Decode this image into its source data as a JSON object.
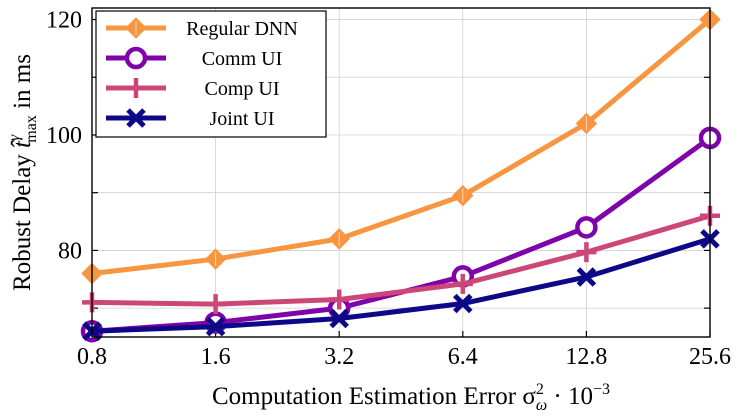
{
  "chart_data": {
    "type": "line",
    "title": "",
    "xlabel": "Computation Estimation Error σ²_ω · 10⁻³",
    "xlabel_parts": {
      "main": "Computation Estimation Error σ",
      "sup": "2",
      "sub": "ω",
      "tail": " · 10",
      "exp": "−3"
    },
    "ylabel": "Robust Delay t̂^γ_max in ms",
    "ylabel_parts": {
      "main": "Robust Delay ",
      "t": "t̂",
      "sup": "γ",
      "sub": "max",
      "tail": " in ms"
    },
    "x_scale": "log2",
    "x": [
      0.8,
      1.6,
      3.2,
      6.4,
      12.8,
      25.6
    ],
    "xticks": [
      "0.8",
      "1.6",
      "3.2",
      "6.4",
      "12.8",
      "25.6"
    ],
    "ylim": [
      65,
      122
    ],
    "yticks": [
      80,
      100,
      120
    ],
    "grid": true,
    "legend_position": "top-left",
    "series": [
      {
        "name": "Regular DNN",
        "color": "#f89540",
        "marker": "diamond",
        "values": [
          76.0,
          78.5,
          82.0,
          89.5,
          102.0,
          120.0
        ]
      },
      {
        "name": "Comm UI",
        "color": "#7e03a8",
        "marker": "circle",
        "values": [
          66.0,
          67.5,
          70.0,
          75.5,
          84.0,
          99.5
        ]
      },
      {
        "name": "Comp UI",
        "color": "#cc4778",
        "marker": "plus",
        "values": [
          71.0,
          70.7,
          71.5,
          74.2,
          79.7,
          86.0
        ]
      },
      {
        "name": "Joint UI",
        "color": "#0d0887",
        "marker": "x",
        "values": [
          66.0,
          66.8,
          68.2,
          70.8,
          75.4,
          82.0
        ]
      }
    ]
  }
}
